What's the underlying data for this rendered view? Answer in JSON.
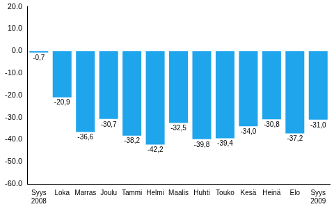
{
  "chart_data": {
    "type": "bar",
    "categories": [
      "Syys\n2008",
      "Loka",
      "Marras",
      "Joulu",
      "Tammi",
      "Helmi",
      "Maalis",
      "Huhti",
      "Touko",
      "Kesä",
      "Heinä",
      "Elo",
      "Syys\n2009"
    ],
    "values": [
      -0.7,
      -20.9,
      -36.6,
      -30.7,
      -38.2,
      -42.2,
      -32.5,
      -39.8,
      -39.4,
      -34.0,
      -30.8,
      -37.2,
      -31.0
    ],
    "value_labels": [
      "-0,7",
      "-20,9",
      "-36,6",
      "-30,7",
      "-38,2",
      "-42,2",
      "-32,5",
      "-39,8",
      "-39,4",
      "-34,0",
      "-30,8",
      "-37,2",
      "-31,0"
    ],
    "color": "#1fa5ec",
    "ylim": [
      -60,
      20
    ],
    "yticks": [
      {
        "value": 20,
        "label": "20.0"
      },
      {
        "value": 10,
        "label": "10.0"
      },
      {
        "value": 0,
        "label": "0.0"
      },
      {
        "value": -10,
        "label": "-10.0"
      },
      {
        "value": -20,
        "label": "-20.0"
      },
      {
        "value": -30,
        "label": "-30.0"
      },
      {
        "value": -40,
        "label": "-40.0"
      },
      {
        "value": -50,
        "label": "-50.0"
      },
      {
        "value": -60,
        "label": "-60.0"
      }
    ],
    "grid": false,
    "data_labels": true
  }
}
